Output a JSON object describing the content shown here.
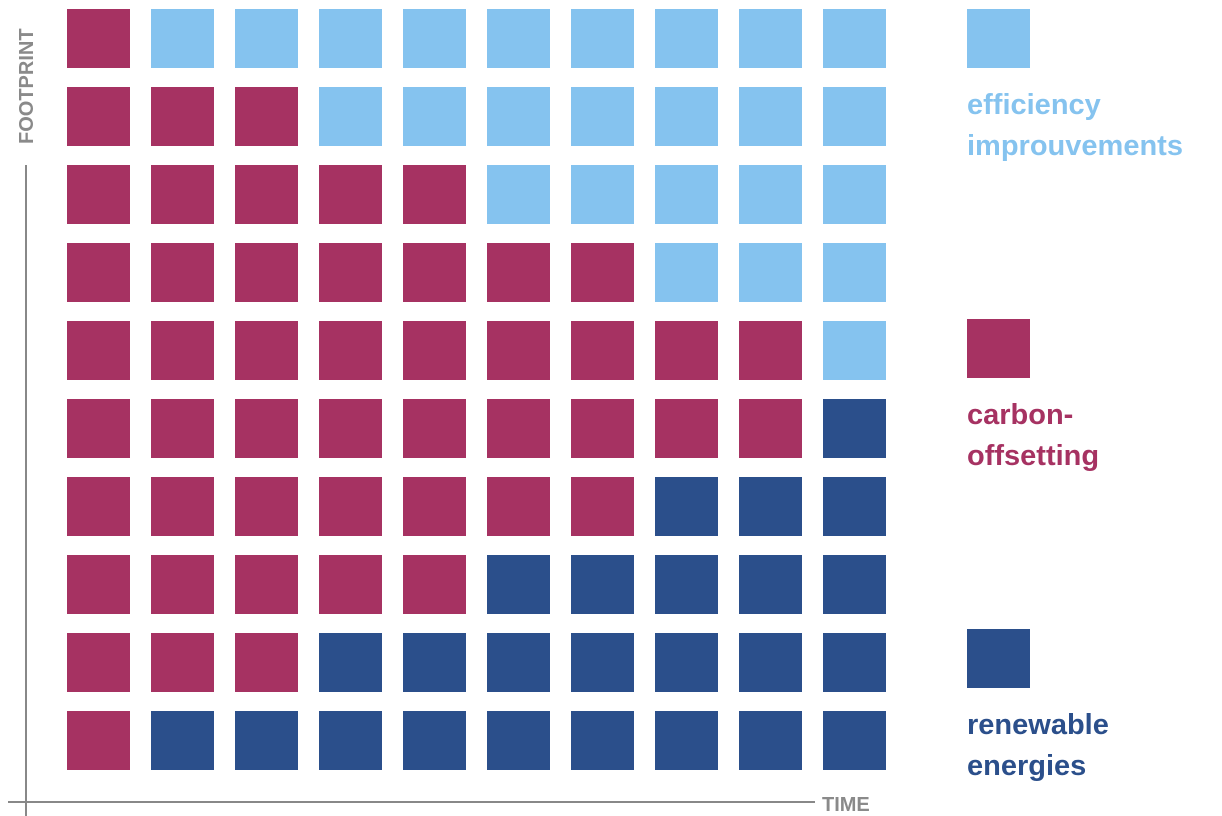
{
  "chart_data": {
    "type": "heatmap",
    "title": "",
    "xlabel": "TIME",
    "ylabel": "FOOTPRINT",
    "rows": 10,
    "cols": 10,
    "categories_order": [
      "efficiency",
      "carbon",
      "renewable"
    ],
    "rows_counts": [
      {
        "efficiency": 9,
        "carbon": 1,
        "renewable": 0
      },
      {
        "efficiency": 7,
        "carbon": 3,
        "renewable": 0
      },
      {
        "efficiency": 5,
        "carbon": 5,
        "renewable": 0
      },
      {
        "efficiency": 3,
        "carbon": 7,
        "renewable": 0
      },
      {
        "efficiency": 1,
        "carbon": 9,
        "renewable": 0
      },
      {
        "efficiency": 0,
        "carbon": 9,
        "renewable": 1
      },
      {
        "efficiency": 0,
        "carbon": 7,
        "renewable": 3
      },
      {
        "efficiency": 0,
        "carbon": 5,
        "renewable": 5
      },
      {
        "efficiency": 0,
        "carbon": 3,
        "renewable": 7
      },
      {
        "efficiency": 0,
        "carbon": 1,
        "renewable": 9
      }
    ],
    "legend": [
      {
        "key": "efficiency",
        "lines": [
          "efficiency",
          "improuvements"
        ],
        "color": "#85C3EF"
      },
      {
        "key": "carbon",
        "lines": [
          "carbon-",
          "offsetting"
        ],
        "color": "#A63262"
      },
      {
        "key": "renewable",
        "lines": [
          "renewable",
          "energies"
        ],
        "color": "#2B4F8B"
      }
    ],
    "colors": {
      "efficiency": "#85C3EF",
      "carbon": "#A63262",
      "renewable": "#2B4F8B"
    },
    "axis_color": "#888888",
    "grid": false,
    "legend_position": "right"
  }
}
